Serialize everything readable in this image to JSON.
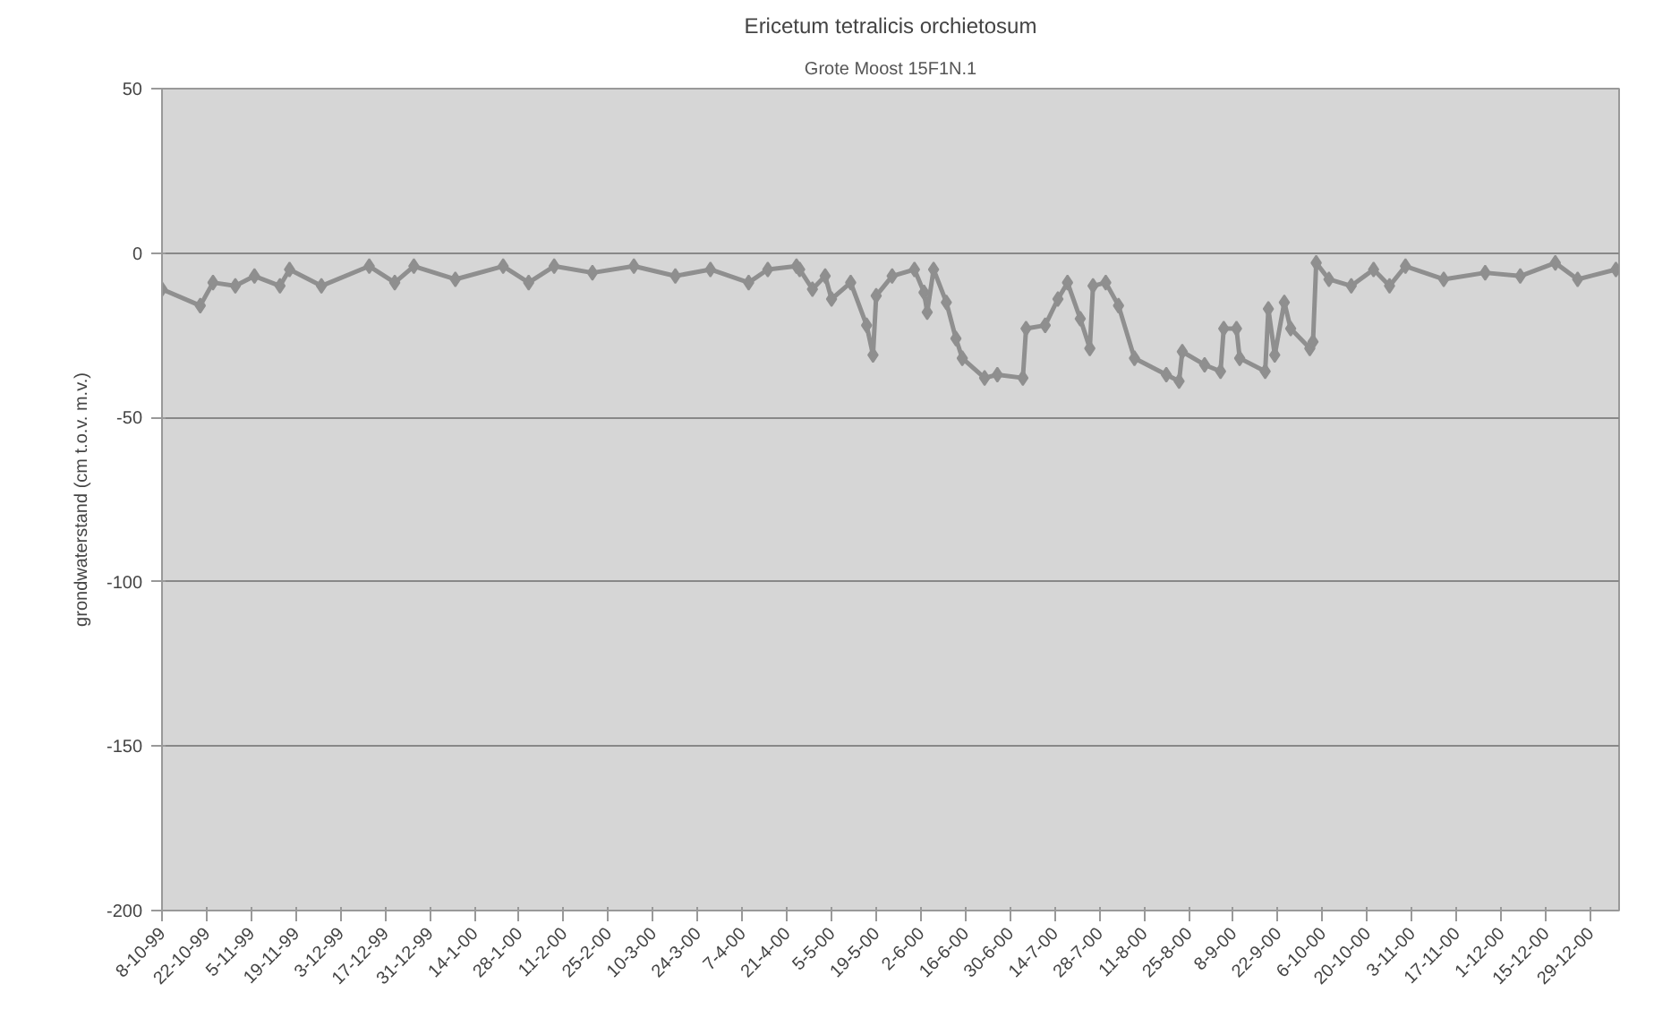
{
  "chart_data": {
    "type": "line",
    "title": "Ericetum tetralicis orchietosum",
    "subtitle": "Grote Moost 15F1N.1",
    "ylabel": "grondwaterstand (cm t.o.v. m.v.)",
    "x": [
      "1999-10-08",
      "1999-10-20",
      "1999-10-24",
      "1999-10-31",
      "1999-11-06",
      "1999-11-14",
      "1999-11-17",
      "1999-11-27",
      "1999-12-12",
      "1999-12-20",
      "1999-12-26",
      "2000-01-08",
      "2000-01-23",
      "2000-01-31",
      "2000-02-08",
      "2000-02-20",
      "2000-03-04",
      "2000-03-17",
      "2000-03-28",
      "2000-04-09",
      "2000-04-15",
      "2000-04-24",
      "2000-04-25",
      "2000-04-29",
      "2000-05-03",
      "2000-05-05",
      "2000-05-11",
      "2000-05-16",
      "2000-05-18",
      "2000-05-19",
      "2000-05-24",
      "2000-05-31",
      "2000-06-03",
      "2000-06-04",
      "2000-06-06",
      "2000-06-10",
      "2000-06-13",
      "2000-06-15",
      "2000-06-22",
      "2000-06-26",
      "2000-07-04",
      "2000-07-05",
      "2000-07-11",
      "2000-07-15",
      "2000-07-18",
      "2000-07-22",
      "2000-07-25",
      "2000-07-26",
      "2000-07-30",
      "2000-08-03",
      "2000-08-08",
      "2000-08-18",
      "2000-08-22",
      "2000-08-23",
      "2000-08-30",
      "2000-09-04",
      "2000-09-05",
      "2000-09-09",
      "2000-09-10",
      "2000-09-18",
      "2000-09-19",
      "2000-09-21",
      "2000-09-24",
      "2000-09-26",
      "2000-10-02",
      "2000-10-03",
      "2000-10-04",
      "2000-10-08",
      "2000-10-15",
      "2000-10-22",
      "2000-10-27",
      "2000-11-01",
      "2000-11-13",
      "2000-11-26",
      "2000-12-07",
      "2000-12-18",
      "2000-12-25",
      "2001-01-06"
    ],
    "series": [
      {
        "color": "#8f8f8f",
        "values": [
          -11,
          -16,
          -9,
          -10,
          -7,
          -10,
          -5,
          -10,
          -4,
          -9,
          -4,
          -8,
          -4,
          -9,
          -4,
          -6,
          -4,
          -7,
          -5,
          -9,
          -5,
          -4,
          -5,
          -11,
          -7,
          -14,
          -9,
          -22,
          -31,
          -13,
          -7,
          -5,
          -12,
          -18,
          -5,
          -15,
          -26,
          -32,
          -38,
          -37,
          -38,
          -23,
          -22,
          -14,
          -9,
          -20,
          -29,
          -10,
          -9,
          -16,
          -32,
          -37,
          -39,
          -30,
          -34,
          -36,
          -23,
          -23,
          -32,
          -36,
          -17,
          -31,
          -15,
          -23,
          -29,
          -27,
          -3,
          -8,
          -10,
          -5,
          -10,
          -4,
          -8,
          -6,
          -7,
          -3,
          -8,
          -5
        ]
      }
    ],
    "xlim": [
      "1999-10-08",
      "2001-01-07"
    ],
    "ylim": [
      -200,
      50
    ],
    "yticks": [
      -200,
      -150,
      -100,
      -50,
      0,
      50
    ],
    "xticks": [
      {
        "value": "1999-10-08",
        "label": "8-10-99"
      },
      {
        "value": "1999-10-22",
        "label": "22-10-99"
      },
      {
        "value": "1999-11-05",
        "label": "5-11-99"
      },
      {
        "value": "1999-11-19",
        "label": "19-11-99"
      },
      {
        "value": "1999-12-03",
        "label": "3-12-99"
      },
      {
        "value": "1999-12-17",
        "label": "17-12-99"
      },
      {
        "value": "1999-12-31",
        "label": "31-12-99"
      },
      {
        "value": "2000-01-14",
        "label": "14-1-00"
      },
      {
        "value": "2000-01-28",
        "label": "28-1-00"
      },
      {
        "value": "2000-02-11",
        "label": "11-2-00"
      },
      {
        "value": "2000-02-25",
        "label": "25-2-00"
      },
      {
        "value": "2000-03-10",
        "label": "10-3-00"
      },
      {
        "value": "2000-03-24",
        "label": "24-3-00"
      },
      {
        "value": "2000-04-07",
        "label": "7-4-00"
      },
      {
        "value": "2000-04-21",
        "label": "21-4-00"
      },
      {
        "value": "2000-05-05",
        "label": "5-5-00"
      },
      {
        "value": "2000-05-19",
        "label": "19-5-00"
      },
      {
        "value": "2000-06-02",
        "label": "2-6-00"
      },
      {
        "value": "2000-06-16",
        "label": "16-6-00"
      },
      {
        "value": "2000-06-30",
        "label": "30-6-00"
      },
      {
        "value": "2000-07-14",
        "label": "14-7-00"
      },
      {
        "value": "2000-07-28",
        "label": "28-7-00"
      },
      {
        "value": "2000-08-11",
        "label": "11-8-00"
      },
      {
        "value": "2000-08-25",
        "label": "25-8-00"
      },
      {
        "value": "2000-09-08",
        "label": "8-9-00"
      },
      {
        "value": "2000-09-22",
        "label": "22-9-00"
      },
      {
        "value": "2000-10-06",
        "label": "6-10-00"
      },
      {
        "value": "2000-10-20",
        "label": "20-10-00"
      },
      {
        "value": "2000-11-03",
        "label": "3-11-00"
      },
      {
        "value": "2000-11-17",
        "label": "17-11-00"
      },
      {
        "value": "2000-12-01",
        "label": "1-12-00"
      },
      {
        "value": "2000-12-15",
        "label": "15-12-00"
      },
      {
        "value": "2000-12-29",
        "label": "29-12-00"
      }
    ],
    "grid": "y",
    "marker": "diamond",
    "line_style": "solid"
  }
}
